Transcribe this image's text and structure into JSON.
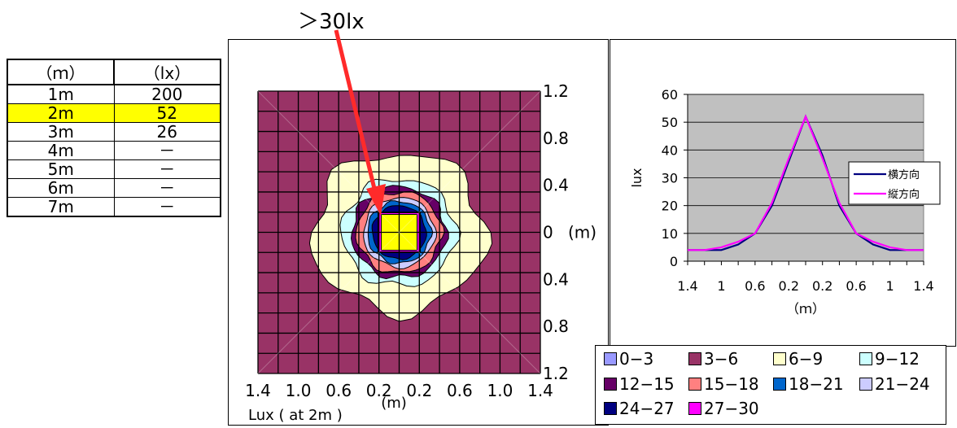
{
  "distance_table": {
    "headers": [
      "（ｍ）",
      "（lx）"
    ],
    "rows": [
      {
        "distance": "1m",
        "lux": "200",
        "highlight": false
      },
      {
        "distance": "2m",
        "lux": "52",
        "highlight": true
      },
      {
        "distance": "3m",
        "lux": "26",
        "highlight": false
      },
      {
        "distance": "4m",
        "lux": "－",
        "highlight": false
      },
      {
        "distance": "5m",
        "lux": "－",
        "highlight": false
      },
      {
        "distance": "6m",
        "lux": "－",
        "highlight": false
      },
      {
        "distance": "7m",
        "lux": "－",
        "highlight": false
      }
    ]
  },
  "callout": {
    "text": "＞30lx",
    "arrow_color": "#ff2a2a"
  },
  "contour_chart": {
    "x_ticks": [
      "1.4",
      "1.0",
      "0.6",
      "0.2",
      "0.2",
      "0.6",
      "1.0",
      "1.4"
    ],
    "y_ticks": [
      "1.2",
      "0.8",
      "0.4",
      "0",
      "0.4",
      "0.8",
      "1.2"
    ],
    "x_unit": "(m)",
    "y_unit": "(m)",
    "caption": "Lux ( at 2m )",
    "grid_cells": 14,
    "level_colors": {
      "3-6": "#993366",
      "6-9": "#ffffcc",
      "9-12": "#ccffff",
      "12-15": "#660066",
      "15-18": "#ff8080",
      "18-21": "#0066cc",
      "21-24": "#ccccff",
      "24-27": "#000080",
      "27-30": "#ff00ff",
      "center": "#ffff00"
    }
  },
  "legend": {
    "items": [
      {
        "label": "0−3",
        "color": "#9999ff"
      },
      {
        "label": "3−6",
        "color": "#993366"
      },
      {
        "label": "6−9",
        "color": "#ffffcc"
      },
      {
        "label": "9−12",
        "color": "#ccffff"
      },
      {
        "label": "12−15",
        "color": "#660066"
      },
      {
        "label": "15−18",
        "color": "#ff8080"
      },
      {
        "label": "18−21",
        "color": "#0066cc"
      },
      {
        "label": "21−24",
        "color": "#ccccff"
      },
      {
        "label": "24−27",
        "color": "#000080"
      },
      {
        "label": "27−30",
        "color": "#ff00ff"
      }
    ]
  },
  "chart_data": {
    "type": "line",
    "categories": [
      "1.4",
      "1.2",
      "1",
      "0.8",
      "0.6",
      "0.4",
      "0.2",
      "0",
      "0.2",
      "0.4",
      "0.6",
      "0.8",
      "1",
      "1.2",
      "1.4"
    ],
    "tick_labels_x": [
      "1.4",
      "1",
      "0.6",
      "0.2",
      "0.2",
      "0.6",
      "1",
      "1.4"
    ],
    "series": [
      {
        "name": "横方向",
        "color": "#000080",
        "values": [
          4,
          4,
          4,
          6,
          10,
          20,
          36,
          52,
          38,
          20,
          10,
          6,
          4,
          4,
          4
        ]
      },
      {
        "name": "縦方向",
        "color": "#ff00ff",
        "values": [
          4,
          4,
          5,
          7,
          10,
          21,
          37,
          52,
          37,
          21,
          10,
          7,
          5,
          4,
          4
        ]
      }
    ],
    "ylabel": "lux",
    "xlabel": "（ｍ）",
    "ylim": [
      0,
      60
    ],
    "y_ticks": [
      0,
      10,
      20,
      30,
      40,
      50,
      60
    ],
    "plot_bg": "#c0c0c0",
    "grid": true,
    "legend_position": "right"
  }
}
